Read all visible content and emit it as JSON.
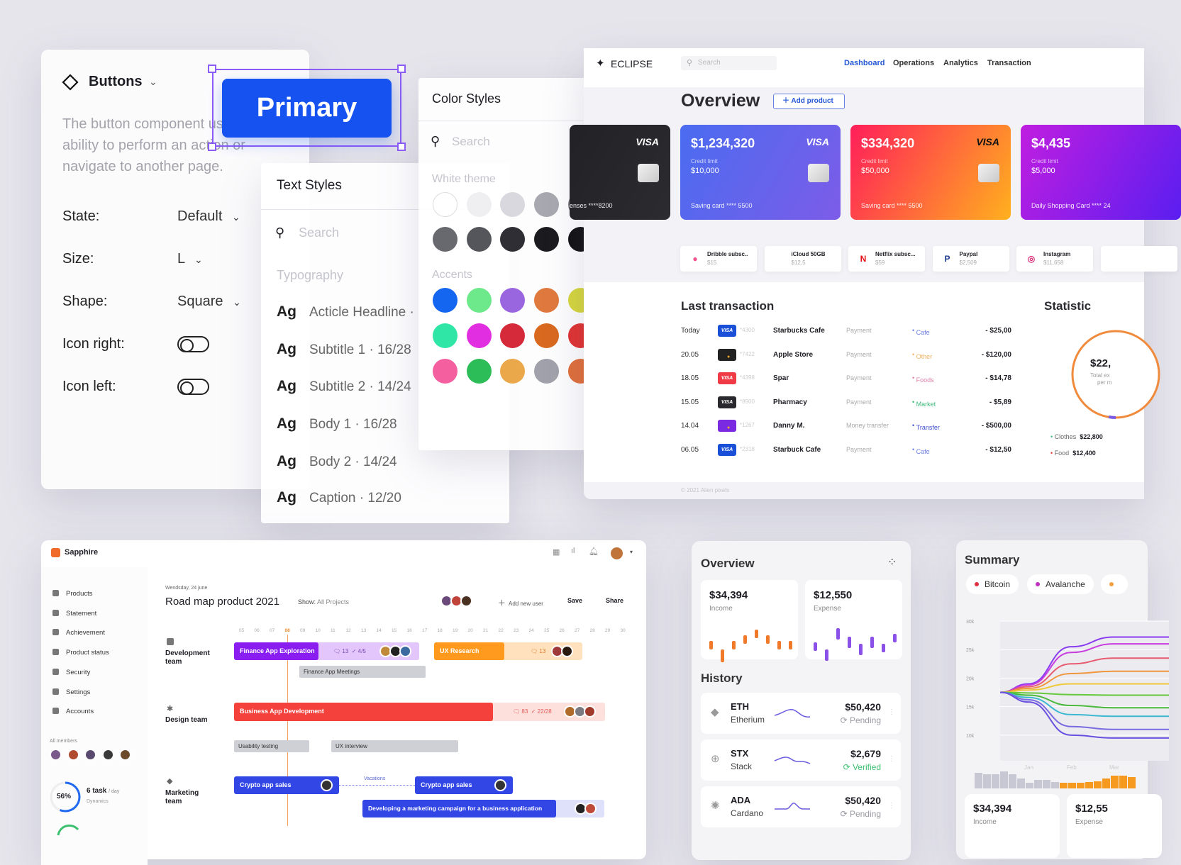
{
  "buttons_panel": {
    "title": "Buttons",
    "description": "The button component users the ability to perform an action or navigate to another page.",
    "primary_label": "Primary",
    "rows": [
      {
        "label": "State:",
        "value": "Default"
      },
      {
        "label": "Size:",
        "value": "L"
      },
      {
        "label": "Shape:",
        "value": "Square"
      },
      {
        "label": "Icon right:",
        "toggle": false
      },
      {
        "label": "Icon left:",
        "toggle": false
      }
    ]
  },
  "text_styles": {
    "title": "Text Styles",
    "search_placeholder": "Search",
    "section": "Typography",
    "items": [
      {
        "sample": "Ag",
        "label": "Acticle Headline ·"
      },
      {
        "sample": "Ag",
        "label": "Subtitle 1 · 16/28"
      },
      {
        "sample": "Ag",
        "label": "Subtitle 2 · 14/24"
      },
      {
        "sample": "Ag",
        "label": "Body 1 · 16/28"
      },
      {
        "sample": "Ag",
        "label": "Body 2 · 14/24"
      },
      {
        "sample": "Ag",
        "label": "Caption · 12/20"
      }
    ]
  },
  "color_styles": {
    "title": "Color Styles",
    "search_placeholder": "Search",
    "white_theme_label": "White theme",
    "white_theme": [
      [
        "#ffffff",
        "#efeff2",
        "#d8d8de",
        "#a8a8b0",
        "#7e7e86"
      ],
      [
        "#68686f",
        "#55555c",
        "#2e2e34",
        "#1b1b1f",
        "#111114"
      ]
    ],
    "accents_label": "Accents",
    "accents": [
      [
        "#1466f0",
        "#6de88b",
        "#9a66e0",
        "#e0793e",
        "#d6d63e"
      ],
      [
        "#2fe6a6",
        "#e02ee0",
        "#d42a3a",
        "#d8691f",
        "#e03232"
      ],
      [
        "#f45fa0",
        "#2dbd58",
        "#eba84a",
        "#a1a1ab",
        "#e06e3a"
      ]
    ]
  },
  "eclipse": {
    "logo": "ECLIPSE",
    "search_placeholder": "Search",
    "nav": [
      {
        "label": "Dashboard",
        "active": true
      },
      {
        "label": "Operations"
      },
      {
        "label": "Analytics"
      },
      {
        "label": "Transaction"
      }
    ],
    "title": "Overview",
    "add_product": "Add product",
    "cards": [
      {
        "amount": "",
        "brand": "VISA",
        "number": "enses ****8200",
        "colors": [
          "#222226",
          "#2c2c30"
        ]
      },
      {
        "amount": "$1,234,320",
        "brand": "VISA",
        "limit_label": "Credit limit",
        "limit": "$10,000",
        "number": "Saving card **** 5500",
        "colors": [
          "#4a6cf0",
          "#7c5ce8"
        ]
      },
      {
        "amount": "$334,320",
        "brand": "VISA",
        "limit_label": "Credit limit",
        "limit": "$50,000",
        "number": "Saving card **** 5500",
        "colors": [
          "#ff1e5a",
          "#ffb01e"
        ]
      },
      {
        "amount": "$4,435",
        "brand": "",
        "limit_label": "Credit limit",
        "limit": "$5,000",
        "number": "Daily Shopping Card  **** 24",
        "colors": [
          "#c01ee0",
          "#5a1ef0"
        ]
      }
    ],
    "subscriptions": [
      {
        "name": "Dribble subsc..",
        "price": "$15",
        "icon": "dribbble-icon",
        "color": "#f0508c"
      },
      {
        "name": "iCloud 50GB",
        "price": "$12,5",
        "icon": "apple-icon",
        "color": "#111"
      },
      {
        "name": "Netflix subsc...",
        "price": "$59",
        "icon": "netflix-icon",
        "color": "#e50914"
      },
      {
        "name": "Paypal",
        "price": "$2,509",
        "icon": "paypal-icon",
        "color": "#1d3e8c"
      },
      {
        "name": "Instagram",
        "price": "$11,658",
        "icon": "instagram-icon",
        "color": "#d62976"
      }
    ],
    "last_transaction_title": "Last transaction",
    "transactions": [
      {
        "date": "Today",
        "card": "visa",
        "card_color": "#1a4fd8",
        "number": "*4300",
        "name": "Starbucks Cafe",
        "type": "Payment",
        "category": "Cafe",
        "category_color": "#6a7de0",
        "amount": "- $25,00"
      },
      {
        "date": "20.05",
        "card": "mastercard",
        "card_color": "#222",
        "number": "*7422",
        "name": "Apple Store",
        "type": "Payment",
        "category": "Other",
        "category_color": "#f0b060",
        "amount": "- $120,00"
      },
      {
        "date": "18.05",
        "card": "visa",
        "card_color": "#f03a46",
        "number": "*4398",
        "name": "Spar",
        "type": "Payment",
        "category": "Foods",
        "category_color": "#e080a8",
        "amount": "- $14,78"
      },
      {
        "date": "15.05",
        "card": "visa",
        "card_color": "#2a2a2e",
        "number": "*8900",
        "name": "Pharmacy",
        "type": "Payment",
        "category": "Market",
        "category_color": "#3cb87a",
        "amount": "- $5,89"
      },
      {
        "date": "14.04",
        "card": "mastercard",
        "card_color": "#7a2ae0",
        "number": "*1267",
        "name": "Danny M.",
        "type": "Money transfer",
        "category": "Transfer",
        "category_color": "#3c4fd0",
        "amount": "- $500,00"
      },
      {
        "date": "06.05",
        "card": "visa",
        "card_color": "#1a4fd8",
        "number": "*2318",
        "name": "Starbuck Cafe",
        "type": "Payment",
        "category": "Cafe",
        "category_color": "#6a7de0",
        "amount": "- $12,50"
      }
    ],
    "statistic_title": "Statistic",
    "statistic_value": "$22,",
    "statistic_caption1": "Total ex",
    "statistic_caption2": "per m",
    "legend": [
      {
        "label": "Clothes",
        "value": "$22,800",
        "color": "#3cb87a"
      },
      {
        "label": "Food",
        "value": "$12,400",
        "color": "#e04040"
      }
    ],
    "footer": "© 2021 Alien pixels"
  },
  "sapphire": {
    "logo": "Sapphire",
    "sidebar": [
      "Products",
      "Statement",
      "Achievement",
      "Product status",
      "Security",
      "Settings",
      "Accounts"
    ],
    "members_label": "All members",
    "progress": {
      "percent": 56,
      "label": "56%",
      "tasks": "6 task",
      "per": "/ day",
      "caption": "Dynamics"
    },
    "date": "Wendsday, 24 june",
    "title": "Road map product 2021",
    "show_label": "Show:",
    "show_value": "All Projects",
    "add_user": "Add new user",
    "save": "Save",
    "share": "Share",
    "days": [
      "05",
      "06",
      "07",
      "08",
      "09",
      "10",
      "11",
      "12",
      "13",
      "14",
      "15",
      "16",
      "17",
      "18",
      "19",
      "20",
      "21",
      "22",
      "23",
      "24",
      "25",
      "26",
      "27",
      "28",
      "29",
      "30"
    ],
    "today": "08",
    "teams": [
      "Development team",
      "Design team",
      "Marketing team"
    ],
    "tasks": {
      "finance_exploration": {
        "label": "Finance App Exploration",
        "comments": "13",
        "checks": "4/5"
      },
      "ux_research": {
        "label": "UX Research",
        "comments": "13"
      },
      "finance_meetings": "Finance App Meetings",
      "business_dev": {
        "label": "Business App Development",
        "comments": "83",
        "checks": "22/28"
      },
      "usability": "Usability testing",
      "ux_interview": "UX interview",
      "crypto1": "Crypto app sales",
      "vacations": "Vacations",
      "crypto2": "Crypto app sales",
      "marketing": "Developing a marketing campaign for a business application"
    }
  },
  "crypto_overview": {
    "title": "Overview",
    "income": {
      "value": "$34,394",
      "label": "Income"
    },
    "expense": {
      "value": "$12,550",
      "label": "Expense"
    },
    "history_title": "History",
    "history": [
      {
        "symbol": "ETH",
        "name": "Etherium",
        "amount": "$50,420",
        "status": "Pending",
        "status_color": "#9a9aa2"
      },
      {
        "symbol": "STX",
        "name": "Stack",
        "amount": "$2,679",
        "status": "Verified",
        "status_color": "#3cc070"
      },
      {
        "symbol": "ADA",
        "name": "Cardano",
        "amount": "$50,420",
        "status": "Pending",
        "status_color": "#9a9aa2"
      }
    ]
  },
  "summary": {
    "title": "Summary",
    "chips": [
      {
        "label": "Bitcoin",
        "color": "#e03040"
      },
      {
        "label": "Avalanche",
        "color": "#c030c0"
      },
      {
        "label": "",
        "color": "#f0a040"
      }
    ],
    "income": {
      "value": "$34,394",
      "label": "Income"
    },
    "expense": {
      "value": "$12,55",
      "label": "Expense"
    }
  },
  "chart_data": {
    "type": "line",
    "x": [
      "",
      "Jan",
      "Feb",
      "Mar"
    ],
    "x_tick_labels": [
      "Jan",
      "Feb",
      "Mar"
    ],
    "y_tick_labels": [
      "30k",
      "25k",
      "20k",
      "15k",
      "10k"
    ],
    "ylim": [
      5.5,
      30
    ],
    "grid": true,
    "series": [
      {
        "color": "#8a3cf0",
        "values": [
          17.5,
          19,
          25.5,
          27.2
        ]
      },
      {
        "color": "#c83ce0",
        "values": [
          17.5,
          18.8,
          24.5,
          26
        ]
      },
      {
        "color": "#e85a70",
        "values": [
          17.5,
          18.5,
          22.5,
          23.5
        ]
      },
      {
        "color": "#f0963c",
        "values": [
          17.5,
          18.2,
          20.8,
          21.2
        ]
      },
      {
        "color": "#f0c83c",
        "values": [
          17.5,
          17.9,
          19,
          19
        ]
      },
      {
        "color": "#66c83c",
        "values": [
          17.5,
          17.4,
          17.1,
          17
        ]
      },
      {
        "color": "#4ab83c",
        "values": [
          17.5,
          17,
          15.2,
          14.8
        ]
      },
      {
        "color": "#3cb8d0",
        "values": [
          17.5,
          16.6,
          13.6,
          13.3
        ]
      },
      {
        "color": "#7a6ae0",
        "values": [
          17.5,
          16.2,
          11.5,
          11
        ]
      },
      {
        "color": "#6a50e0",
        "values": [
          17.5,
          15.8,
          10,
          9.5
        ]
      }
    ]
  }
}
